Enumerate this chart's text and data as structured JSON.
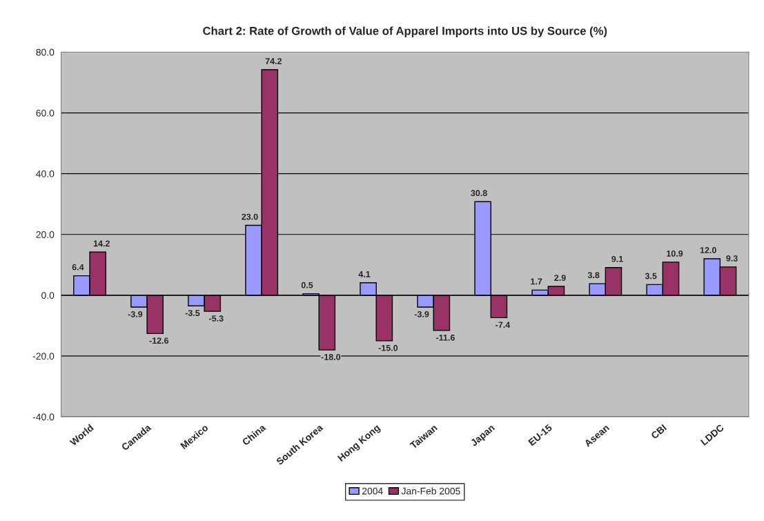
{
  "chart_data": {
    "type": "bar",
    "title": "Chart 2: Rate of Growth of Value of Apparel Imports into US by Source (%)",
    "categories": [
      "World",
      "Canada",
      "Mexico",
      "China",
      "South Korea",
      "Hong Kong",
      "Taiwan",
      "Japan",
      "EU-15",
      "Asean",
      "CBI",
      "LDDC"
    ],
    "series": [
      {
        "name": "2004",
        "color": "#9999ff",
        "values": [
          6.4,
          -3.9,
          -3.5,
          23.0,
          0.5,
          4.1,
          -3.9,
          30.8,
          1.7,
          3.8,
          3.5,
          12.0
        ],
        "value_labels": [
          "6.4",
          "-3.9",
          "-3.5",
          "23.0",
          "0.5",
          "4.1",
          "-3.9",
          "30.8",
          "1.7",
          "3.8",
          "3.5",
          "12.0"
        ]
      },
      {
        "name": "Jan-Feb 2005",
        "color": "#993366",
        "values": [
          14.2,
          -12.6,
          -5.3,
          74.2,
          -18.0,
          -15.0,
          -11.6,
          -7.4,
          2.9,
          9.1,
          10.9,
          9.3
        ],
        "value_labels": [
          "14.2",
          "-12.6",
          "-5.3",
          "74.2",
          "-18.0",
          "-15.0",
          "-11.6",
          "-7.4",
          "2.9",
          "9.1",
          "10.9",
          "9.3"
        ]
      }
    ],
    "ylim": [
      -40,
      80
    ],
    "yticks": [
      {
        "value": -40,
        "label": "-40.0"
      },
      {
        "value": -20,
        "label": "-20.0"
      },
      {
        "value": 0,
        "label": "0.0"
      },
      {
        "value": 20,
        "label": "20.0"
      },
      {
        "value": 40,
        "label": "40.0"
      },
      {
        "value": 60,
        "label": "60.0"
      },
      {
        "value": 80,
        "label": "80.0"
      }
    ],
    "grid": "y",
    "legend": "bottom"
  }
}
